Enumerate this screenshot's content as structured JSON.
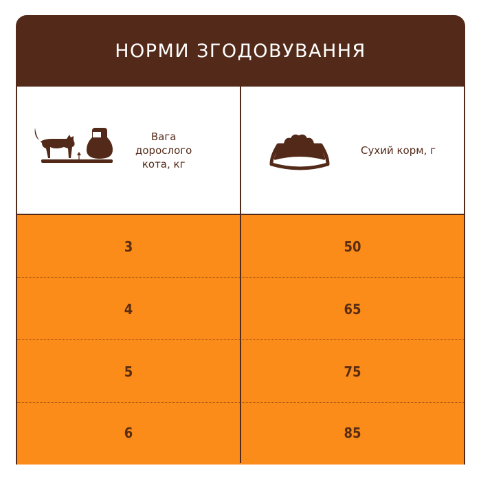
{
  "title": "НОРМИ ЗГОДОВУВАННЯ",
  "columns": [
    {
      "label_lines": [
        "Вага",
        "дорослого",
        "кота, кг"
      ],
      "icon": "cat-weight-icon"
    },
    {
      "label": "Сухий корм, г",
      "icon": "food-bowl-icon"
    }
  ],
  "rows": [
    {
      "weight": "3",
      "food": "50"
    },
    {
      "weight": "4",
      "food": "65"
    },
    {
      "weight": "5",
      "food": "75"
    },
    {
      "weight": "6",
      "food": "85"
    }
  ],
  "colors": {
    "brown": "#532a19",
    "orange": "#fb8c19",
    "text": "#5a2d12"
  }
}
